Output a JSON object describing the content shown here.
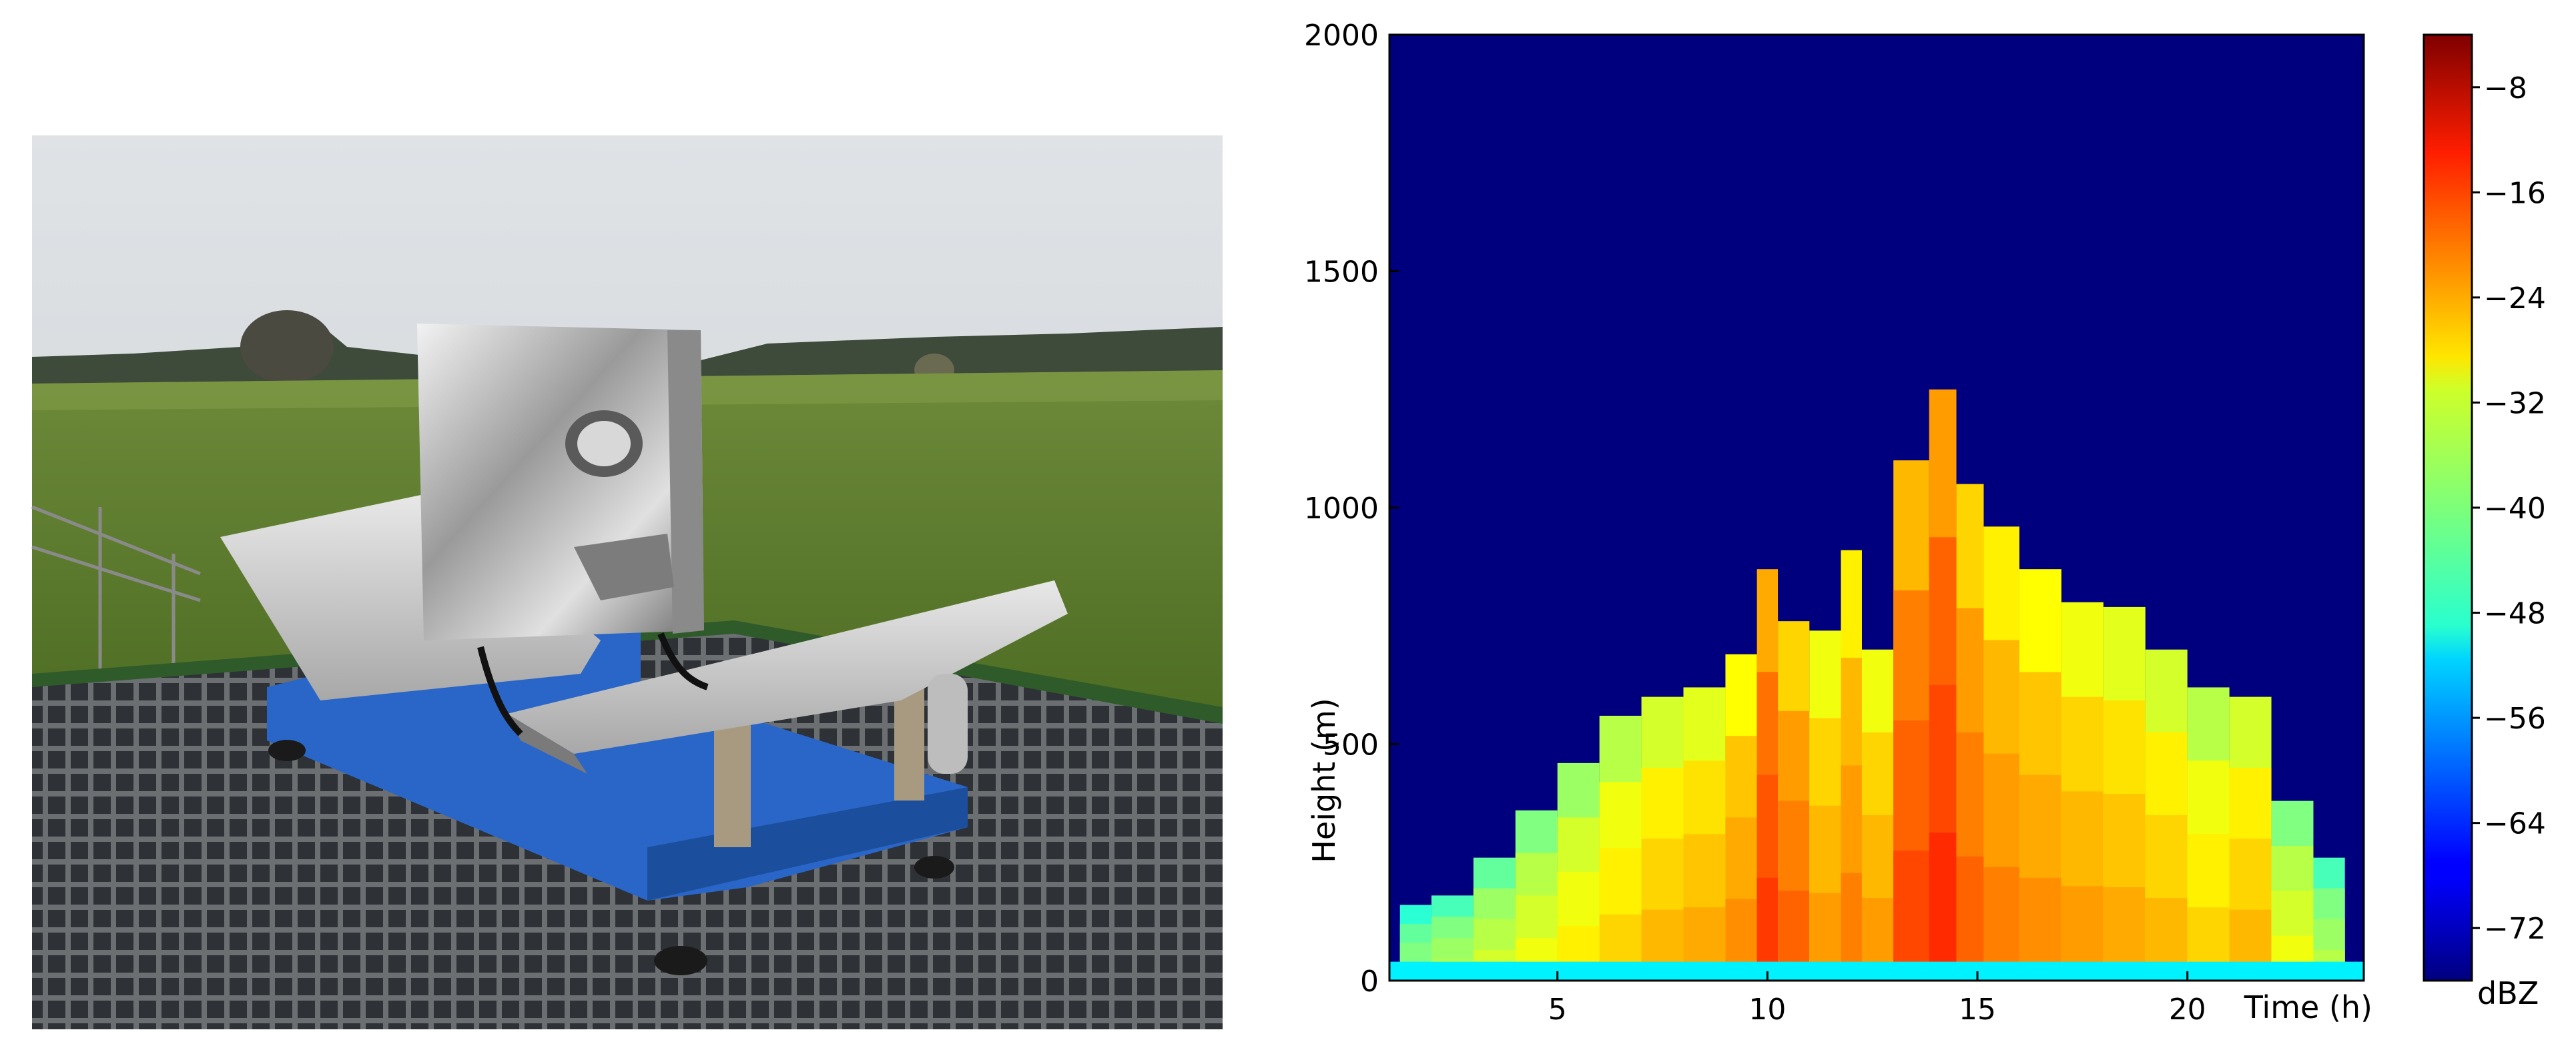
{
  "photo": {
    "icon": "radar-instrument-photo"
  },
  "chart_data": {
    "type": "heatmap",
    "title": "",
    "xlabel": "Time (h)",
    "ylabel": "Height (m)",
    "xlim": [
      1,
      24.2
    ],
    "ylim": [
      0,
      2000
    ],
    "xticks": [
      5,
      10,
      15,
      20
    ],
    "yticks": [
      0,
      500,
      1000,
      1500,
      2000
    ],
    "colorbar": {
      "label": "dBZ",
      "range": [
        -76,
        -4
      ],
      "ticks": [
        -8,
        -16,
        -24,
        -32,
        -40,
        -48,
        -56,
        -64,
        -72
      ],
      "colormap": "jet"
    },
    "background_value": -76,
    "columns": [
      {
        "t": 1.5,
        "top": 160,
        "value": -40
      },
      {
        "t": 2.5,
        "top": 180,
        "value": -38
      },
      {
        "t": 3.5,
        "top": 260,
        "value": -36
      },
      {
        "t": 4.5,
        "top": 360,
        "value": -34
      },
      {
        "t": 5.5,
        "top": 460,
        "value": -32
      },
      {
        "t": 6.5,
        "top": 560,
        "value": -30
      },
      {
        "t": 7.5,
        "top": 600,
        "value": -28
      },
      {
        "t": 8.5,
        "top": 620,
        "value": -27
      },
      {
        "t": 9.5,
        "top": 690,
        "value": -25
      },
      {
        "t": 10.0,
        "top": 870,
        "value": -19
      },
      {
        "t": 10.5,
        "top": 760,
        "value": -22
      },
      {
        "t": 11.5,
        "top": 740,
        "value": -26
      },
      {
        "t": 12.0,
        "top": 910,
        "value": -24
      },
      {
        "t": 12.5,
        "top": 700,
        "value": -26
      },
      {
        "t": 13.5,
        "top": 1100,
        "value": -20
      },
      {
        "t": 14.2,
        "top": 1250,
        "value": -18
      },
      {
        "t": 14.8,
        "top": 1050,
        "value": -22
      },
      {
        "t": 15.5,
        "top": 960,
        "value": -24
      },
      {
        "t": 16.5,
        "top": 870,
        "value": -25
      },
      {
        "t": 17.5,
        "top": 800,
        "value": -26
      },
      {
        "t": 18.5,
        "top": 790,
        "value": -27
      },
      {
        "t": 19.5,
        "top": 700,
        "value": -28
      },
      {
        "t": 20.5,
        "top": 620,
        "value": -30
      },
      {
        "t": 21.5,
        "top": 600,
        "value": -28
      },
      {
        "t": 22.5,
        "top": 380,
        "value": -34
      },
      {
        "t": 23.5,
        "top": 260,
        "value": -38
      }
    ],
    "surface_layer": {
      "top": 40,
      "value": -50
    }
  }
}
